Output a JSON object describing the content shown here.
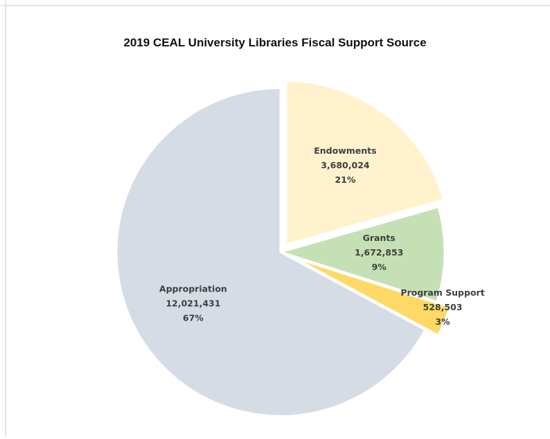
{
  "chart_data": {
    "type": "pie",
    "title": "2019 CEAL University Libraries Fiscal Support Source",
    "slices": [
      {
        "name": "Appropriation",
        "value": "12,021,431",
        "raw": 12021431,
        "percent": "67%",
        "color": "#d6dce5"
      },
      {
        "name": "Endowments",
        "value": "3,680,024",
        "raw": 3680024,
        "percent": "21%",
        "color": "#fff2cc"
      },
      {
        "name": "Grants",
        "value": "1,672,853",
        "raw": 1672853,
        "percent": "9%",
        "color": "#c5e0b4"
      },
      {
        "name": "Program Support",
        "value": "528,503",
        "raw": 528503,
        "percent": "3%",
        "color": "#ffd966"
      }
    ]
  }
}
